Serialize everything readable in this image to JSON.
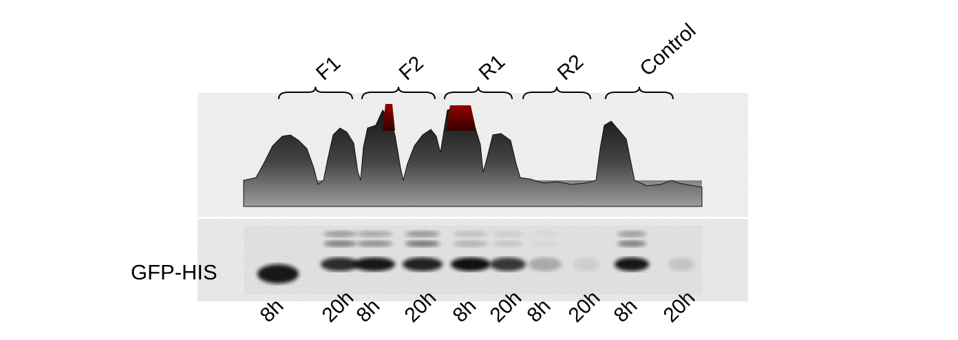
{
  "groups": [
    {
      "label": "F1"
    },
    {
      "label": "F2"
    },
    {
      "label": "R1"
    },
    {
      "label": "R2"
    },
    {
      "label": "Control"
    }
  ],
  "lanes": [
    "8h",
    "20h",
    "8h",
    "20h",
    "8h",
    "20h",
    "8h",
    "20h",
    "8h",
    "20h"
  ],
  "row_label": "GFP-HIS",
  "colors": {
    "peak_dark": "#1a1a1a",
    "peak_light": "#9a9a9a",
    "saturated": "#8b0000",
    "band": "#111111"
  }
}
